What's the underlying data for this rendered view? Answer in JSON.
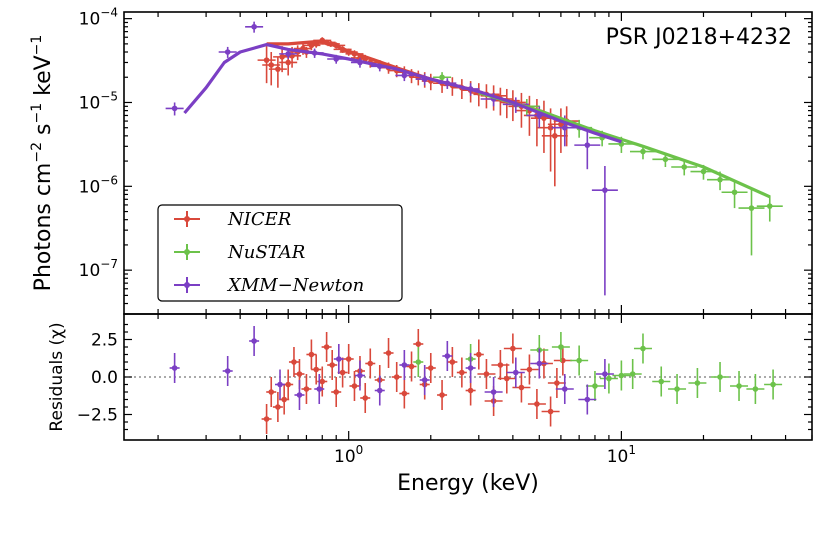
{
  "colors": {
    "nicer": "#d9483b",
    "nustar": "#6cc24a",
    "xmm": "#7b3fc4",
    "zero_line": "#777777"
  },
  "chart_data": [
    {
      "type": "scatter",
      "title": "PSR J0218+4232",
      "xlabel": "",
      "ylabel_prefix": "Photons cm",
      "ylabel_sup1": "−2",
      "ylabel_mid": " s",
      "ylabel_sup2": "−1",
      "ylabel_mid2": " keV",
      "ylabel_sup3": "−1",
      "xscale": "log",
      "yscale": "log",
      "xlim": [
        0.15,
        50
      ],
      "ylim": [
        3e-08,
        0.00012
      ],
      "yticks": [
        {
          "value": 1e-07,
          "base": "10",
          "exp": "−7"
        },
        {
          "value": 1e-06,
          "base": "10",
          "exp": "−6"
        },
        {
          "value": 1e-05,
          "base": "10",
          "exp": "−5"
        },
        {
          "value": 0.0001,
          "base": "10",
          "exp": "−4"
        }
      ],
      "legend_position": "lower-left",
      "series": [
        {
          "name": "NICER",
          "color": "#d9483b",
          "points": [
            [
              0.5,
              3.2e-05,
              1.5e-05
            ],
            [
              0.52,
              2.8e-05,
              1.2e-05
            ],
            [
              0.55,
              2.5e-05,
              1e-05
            ],
            [
              0.57,
              3.5e-05,
              1.2e-05
            ],
            [
              0.6,
              3e-05,
              9e-06
            ],
            [
              0.62,
              3.6e-05,
              1e-05
            ],
            [
              0.65,
              4e-05,
              8e-06
            ],
            [
              0.68,
              4.4e-05,
              7e-06
            ],
            [
              0.7,
              4e-05,
              6e-06
            ],
            [
              0.73,
              4.8e-05,
              6e-06
            ],
            [
              0.76,
              5e-05,
              5e-06
            ],
            [
              0.8,
              5.5e-05,
              5e-06
            ],
            [
              0.83,
              5.2e-05,
              4e-06
            ],
            [
              0.86,
              5e-05,
              4e-06
            ],
            [
              0.9,
              4.8e-05,
              4e-06
            ],
            [
              0.95,
              4.3e-05,
              4e-06
            ],
            [
              1.0,
              4e-05,
              4e-06
            ],
            [
              1.05,
              3.8e-05,
              4e-06
            ],
            [
              1.1,
              3.4e-05,
              4e-06
            ],
            [
              1.15,
              3.3e-05,
              4e-06
            ],
            [
              1.2,
              3e-05,
              4e-06
            ],
            [
              1.3,
              2.8e-05,
              4e-06
            ],
            [
              1.4,
              2.6e-05,
              4e-06
            ],
            [
              1.5,
              2.4e-05,
              4e-06
            ],
            [
              1.6,
              2.3e-05,
              4e-06
            ],
            [
              1.7,
              2.1e-05,
              4e-06
            ],
            [
              1.8,
              2e-05,
              4e-06
            ],
            [
              1.9,
              1.9e-05,
              4e-06
            ],
            [
              2.0,
              1.8e-05,
              4e-06
            ],
            [
              2.2,
              1.7e-05,
              4e-06
            ],
            [
              2.4,
              1.6e-05,
              4e-06
            ],
            [
              2.6,
              1.5e-05,
              4e-06
            ],
            [
              2.8,
              1.4e-05,
              4e-06
            ],
            [
              3.0,
              1.3e-05,
              4e-06
            ],
            [
              3.2,
              1.25e-05,
              4e-06
            ],
            [
              3.4,
              1.2e-05,
              4e-06
            ],
            [
              3.6,
              1.1e-05,
              4e-06
            ],
            [
              3.8,
              1.05e-05,
              4e-06
            ],
            [
              4.0,
              1e-05,
              4e-06
            ],
            [
              4.3,
              9e-06,
              4e-06
            ],
            [
              4.6,
              8e-06,
              4e-06
            ],
            [
              4.9,
              7e-06,
              4e-06
            ],
            [
              5.2,
              6.5e-06,
              4e-06
            ],
            [
              5.5,
              5e-06,
              3.5e-06
            ],
            [
              5.7,
              4e-06,
              3e-06
            ],
            [
              6.0,
              5.5e-06,
              3e-06
            ],
            [
              6.3,
              6e-06,
              3e-06
            ]
          ]
        },
        {
          "name": "NuSTAR",
          "color": "#6cc24a",
          "points": [
            [
              2.2,
              2e-05,
              3e-06
            ],
            [
              4.5,
              9e-06,
              2e-06
            ],
            [
              7.0,
              5e-06,
              1.2e-06
            ],
            [
              8.5,
              3.8e-06,
              8e-07
            ],
            [
              10.0,
              3.2e-06,
              7e-07
            ],
            [
              12.0,
              2.6e-06,
              5e-07
            ],
            [
              14.5,
              2.1e-06,
              4e-07
            ],
            [
              17.0,
              1.7e-06,
              3.5e-07
            ],
            [
              20.0,
              1.5e-06,
              3e-07
            ],
            [
              23.0,
              1.2e-06,
              3e-07
            ],
            [
              26.0,
              8.5e-07,
              3e-07
            ],
            [
              30.0,
              5.5e-07,
              4e-07
            ],
            [
              35.0,
              5.8e-07,
              2e-07
            ]
          ]
        },
        {
          "name": "XMM−Newton",
          "color": "#7b3fc4",
          "points": [
            [
              0.23,
              8.5e-06,
              1.5e-06
            ],
            [
              0.36,
              4e-05,
              6e-06
            ],
            [
              0.45,
              8e-05,
              1.2e-05
            ],
            [
              0.6,
              3.8e-05,
              5e-06
            ],
            [
              0.75,
              3.9e-05,
              5e-06
            ],
            [
              0.9,
              3.3e-05,
              4e-06
            ],
            [
              1.1,
              3e-05,
              4e-06
            ],
            [
              1.3,
              2.7e-05,
              3.5e-06
            ],
            [
              1.6,
              2.1e-05,
              3e-06
            ],
            [
              1.9,
              1.9e-05,
              3e-06
            ],
            [
              2.3,
              1.7e-05,
              2.5e-06
            ],
            [
              2.8,
              1.45e-05,
              2.5e-06
            ],
            [
              3.4,
              1.1e-05,
              2e-06
            ],
            [
              4.1,
              9.5e-06,
              2e-06
            ],
            [
              5.0,
              7e-06,
              2e-06
            ],
            [
              6.2,
              5e-06,
              2e-06
            ],
            [
              7.5,
              3.1e-06,
              1.5e-06
            ],
            [
              8.7,
              9e-07,
              8.5e-07
            ]
          ]
        }
      ],
      "model_curves": [
        {
          "name": "NICER",
          "color": "#d9483b",
          "points": [
            [
              0.5,
              5e-05
            ],
            [
              0.6,
              5e-05
            ],
            [
              0.7,
              5.2e-05
            ],
            [
              0.8,
              5.4e-05
            ],
            [
              0.9,
              4.7e-05
            ],
            [
              1.0,
              4.1e-05
            ],
            [
              1.5,
              2.6e-05
            ],
            [
              2.0,
              1.9e-05
            ],
            [
              3.0,
              1.35e-05
            ],
            [
              4.0,
              1e-05
            ],
            [
              5.0,
              8e-06
            ],
            [
              6.5,
              5.8e-06
            ]
          ]
        },
        {
          "name": "NuSTAR",
          "color": "#6cc24a",
          "points": [
            [
              3.0,
              1.3e-05
            ],
            [
              5.0,
              8e-06
            ],
            [
              8.0,
              4.6e-06
            ],
            [
              12.0,
              3e-06
            ],
            [
              20.0,
              1.7e-06
            ],
            [
              35.0,
              7.5e-07
            ]
          ]
        },
        {
          "name": "XMM−Newton",
          "color": "#7b3fc4",
          "points": [
            [
              0.25,
              7.5e-06
            ],
            [
              0.3,
              1.5e-05
            ],
            [
              0.35,
              3e-05
            ],
            [
              0.4,
              4e-05
            ],
            [
              0.5,
              4.9e-05
            ],
            [
              0.6,
              4.3e-05
            ],
            [
              0.8,
              3.8e-05
            ],
            [
              1.0,
              3.3e-05
            ],
            [
              1.5,
              2.5e-05
            ],
            [
              2.0,
              1.9e-05
            ],
            [
              3.0,
              1.35e-05
            ],
            [
              4.0,
              1e-05
            ],
            [
              6.0,
              6e-06
            ],
            [
              8.0,
              4.3e-06
            ],
            [
              10.0,
              3.4e-06
            ]
          ]
        }
      ]
    },
    {
      "type": "scatter",
      "xlabel": "Energy (keV)",
      "ylabel": "Residuals (χ)",
      "xscale": "log",
      "xlim": [
        0.15,
        50
      ],
      "ylim": [
        -4.2,
        4.2
      ],
      "yticks": [
        "2.5",
        "0.0",
        "−2.5"
      ],
      "ytick_values": [
        2.5,
        0.0,
        -2.5
      ],
      "xticks": [
        {
          "value": 1,
          "base": "10",
          "exp": "0"
        },
        {
          "value": 10,
          "base": "10",
          "exp": "1"
        }
      ],
      "reference_line": 0,
      "series": [
        {
          "name": "NICER",
          "color": "#d9483b",
          "points": [
            [
              0.5,
              -2.8,
              1.0
            ],
            [
              0.52,
              -1.0,
              1.0
            ],
            [
              0.55,
              -2.0,
              1.0
            ],
            [
              0.58,
              -1.5,
              1.0
            ],
            [
              0.6,
              -0.5,
              1.0
            ],
            [
              0.63,
              1.0,
              1.0
            ],
            [
              0.66,
              0.2,
              1.0
            ],
            [
              0.7,
              -0.8,
              1.0
            ],
            [
              0.73,
              1.5,
              1.0
            ],
            [
              0.76,
              0.5,
              1.0
            ],
            [
              0.8,
              -0.3,
              1.0
            ],
            [
              0.83,
              2.0,
              1.0
            ],
            [
              0.87,
              0.8,
              1.0
            ],
            [
              0.9,
              -1.0,
              1.0
            ],
            [
              0.95,
              0.3,
              1.0
            ],
            [
              1.0,
              1.2,
              1.0
            ],
            [
              1.05,
              -0.6,
              1.0
            ],
            [
              1.1,
              0.4,
              1.0
            ],
            [
              1.15,
              -1.4,
              1.0
            ],
            [
              1.2,
              0.9,
              1.0
            ],
            [
              1.3,
              -0.2,
              1.0
            ],
            [
              1.4,
              1.6,
              1.0
            ],
            [
              1.5,
              0.0,
              1.0
            ],
            [
              1.6,
              -1.1,
              1.0
            ],
            [
              1.7,
              0.7,
              1.0
            ],
            [
              1.8,
              2.2,
              1.0
            ],
            [
              1.9,
              -0.5,
              1.0
            ],
            [
              2.0,
              0.6,
              1.0
            ],
            [
              2.2,
              -1.2,
              1.0
            ],
            [
              2.4,
              1.0,
              1.0
            ],
            [
              2.6,
              0.3,
              1.0
            ],
            [
              2.8,
              -0.9,
              1.0
            ],
            [
              3.0,
              1.5,
              1.0
            ],
            [
              3.2,
              0.2,
              1.0
            ],
            [
              3.4,
              -1.6,
              1.0
            ],
            [
              3.6,
              0.8,
              1.0
            ],
            [
              3.8,
              -0.1,
              1.0
            ],
            [
              4.0,
              1.9,
              1.0
            ],
            [
              4.3,
              -0.7,
              1.0
            ],
            [
              4.6,
              0.5,
              1.0
            ],
            [
              4.9,
              -1.8,
              1.0
            ],
            [
              5.2,
              0.9,
              1.0
            ],
            [
              5.5,
              -2.3,
              1.0
            ],
            [
              5.8,
              -0.4,
              1.0
            ],
            [
              6.1,
              1.1,
              1.0
            ]
          ]
        },
        {
          "name": "NuSTAR",
          "color": "#6cc24a",
          "points": [
            [
              1.8,
              1.0,
              1.0
            ],
            [
              2.8,
              1.2,
              1.0
            ],
            [
              5.0,
              1.8,
              1.0
            ],
            [
              6.0,
              2.0,
              1.0
            ],
            [
              7.0,
              1.1,
              1.0
            ],
            [
              8.0,
              -0.6,
              1.0
            ],
            [
              9.0,
              -0.1,
              1.0
            ],
            [
              10.0,
              0.1,
              1.0
            ],
            [
              11.0,
              0.2,
              1.0
            ],
            [
              12.0,
              1.9,
              1.0
            ],
            [
              14.0,
              -0.3,
              1.0
            ],
            [
              16.0,
              -0.8,
              1.0
            ],
            [
              19.0,
              -0.4,
              1.0
            ],
            [
              23.0,
              0.0,
              1.0
            ],
            [
              27.0,
              -0.6,
              1.0
            ],
            [
              31.0,
              -0.8,
              1.0
            ],
            [
              36.0,
              -0.5,
              1.0
            ]
          ]
        },
        {
          "name": "XMM−Newton",
          "color": "#7b3fc4",
          "points": [
            [
              0.23,
              0.6,
              1.0
            ],
            [
              0.36,
              0.4,
              1.0
            ],
            [
              0.45,
              2.4,
              1.0
            ],
            [
              0.56,
              -0.5,
              1.0
            ],
            [
              0.66,
              -1.2,
              1.0
            ],
            [
              0.78,
              -0.8,
              1.0
            ],
            [
              0.92,
              1.2,
              1.0
            ],
            [
              1.1,
              0.1,
              1.0
            ],
            [
              1.3,
              -0.9,
              1.0
            ],
            [
              1.6,
              0.8,
              1.0
            ],
            [
              1.9,
              -0.2,
              1.0
            ],
            [
              2.3,
              1.4,
              1.0
            ],
            [
              2.8,
              0.6,
              1.0
            ],
            [
              3.4,
              -1.0,
              1.0
            ],
            [
              4.1,
              0.3,
              1.0
            ],
            [
              5.0,
              0.9,
              1.0
            ],
            [
              6.2,
              -0.8,
              1.0
            ],
            [
              7.5,
              -1.5,
              1.0
            ],
            [
              8.7,
              0.2,
              1.0
            ]
          ]
        }
      ]
    }
  ]
}
